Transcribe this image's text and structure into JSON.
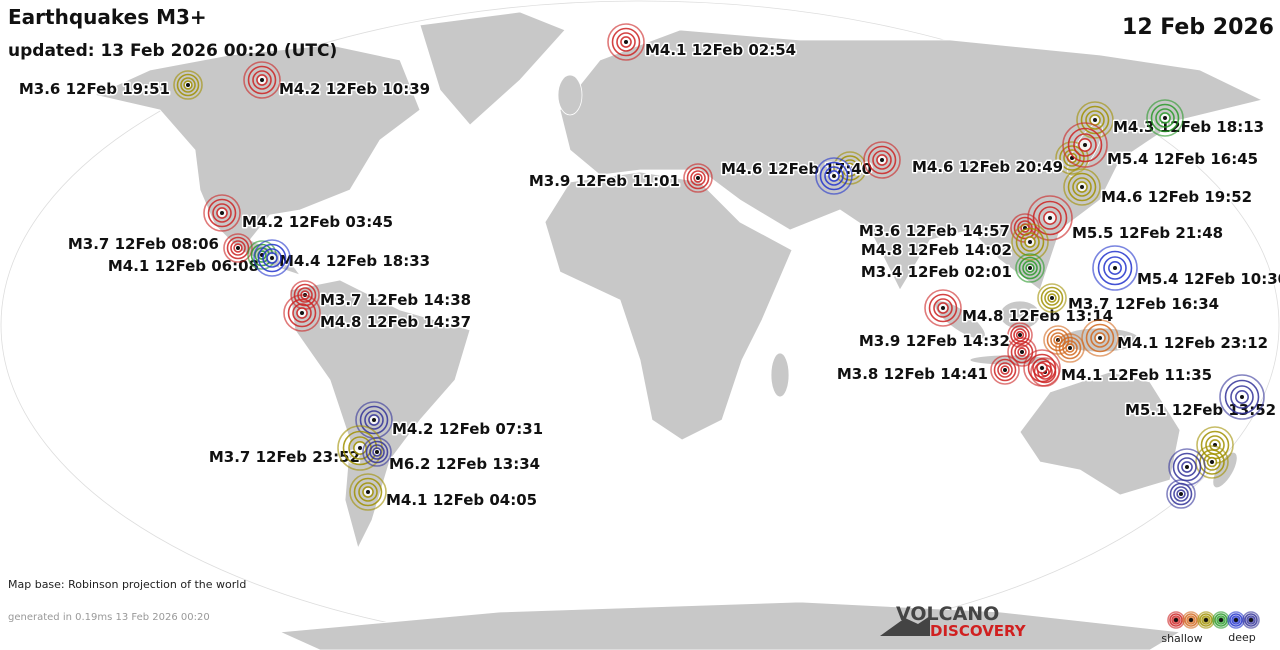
{
  "header": {
    "title": "Earthquakes M3+",
    "updated": "updated: 13 Feb 2026 00:20 (UTC)",
    "date": "12 Feb 2026"
  },
  "quakes": [
    {
      "label": "M4.1 12Feb 02:54",
      "color": "#cc2222"
    },
    {
      "label": "M3.6 12Feb 19:51",
      "color": "#a09000"
    },
    {
      "label": "M4.2 12Feb 10:39",
      "color": "#cc2222"
    },
    {
      "label": "M4.2 12Feb 03:45",
      "color": "#cc2222"
    },
    {
      "label": "M3.7 12Feb 08:06",
      "color": "#cc2222"
    },
    {
      "label": "M4.1 12Feb 06:08",
      "color": "#2a9a2a"
    },
    {
      "label": "M4.4 12Feb 18:33",
      "color": "#2233cc"
    },
    {
      "label": "M3.7 12Feb 14:38",
      "color": "#cc2222"
    },
    {
      "label": "M4.8 12Feb 14:37",
      "color": "#cc2222"
    },
    {
      "label": "M4.2 12Feb 07:31",
      "color": "#333399"
    },
    {
      "label": "M3.7 12Feb 23:52",
      "color": "#a09000"
    },
    {
      "label": "M6.2 12Feb 13:34",
      "color": "#333399"
    },
    {
      "label": "M4.1 12Feb 04:05",
      "color": "#a09000"
    },
    {
      "label": "M3.9 12Feb 11:01",
      "color": "#cc2222"
    },
    {
      "label": "M4.6 12Feb 17:40",
      "color": "#2233cc"
    },
    {
      "label": "M4.6 12Feb 20:49",
      "color": "#cc2222"
    },
    {
      "label": "M4.3 12Feb 18:13",
      "color": "#2a9a2a"
    },
    {
      "label": "M5.4 12Feb 16:45",
      "color": "#cc2222"
    },
    {
      "label": "M4.6 12Feb 19:52",
      "color": "#a09000"
    },
    {
      "label": "M5.5 12Feb 21:48",
      "color": "#cc2222"
    },
    {
      "label": "M3.6 12Feb 14:57",
      "color": "#cc2222"
    },
    {
      "label": "M4.8 12Feb 14:02",
      "color": "#a09000"
    },
    {
      "label": "M3.4 12Feb 02:01",
      "color": "#2a9a2a"
    },
    {
      "label": "M5.4 12Feb 10:30",
      "color": "#2233cc"
    },
    {
      "label": "M3.7 12Feb 16:34",
      "color": "#a09000"
    },
    {
      "label": "M4.8 12Feb 13:14",
      "color": "#cc2222"
    },
    {
      "label": "M3.9 12Feb 14:32",
      "color": "#cc2222"
    },
    {
      "label": "M4.1 12Feb 23:12",
      "color": "#d2691e"
    },
    {
      "label": "M3.8 12Feb 14:41",
      "color": "#cc2222"
    },
    {
      "label": "M4.1 12Feb 11:35",
      "color": "#cc2222"
    },
    {
      "label": "M5.1 12Feb 13:52",
      "color": "#333399"
    }
  ],
  "footer": {
    "map_base": "Map base: Robinson projection of the world",
    "generated": "generated in 0.19ms 13 Feb 2026 00:20"
  },
  "logo": {
    "line1": "VOLCANO",
    "line2": "DISCOVERY"
  },
  "legend": {
    "shallow": "shallow",
    "deep": "deep",
    "colors": [
      "#cc2222",
      "#d2691e",
      "#a09000",
      "#2a9a2a",
      "#2233cc",
      "#333399"
    ]
  }
}
